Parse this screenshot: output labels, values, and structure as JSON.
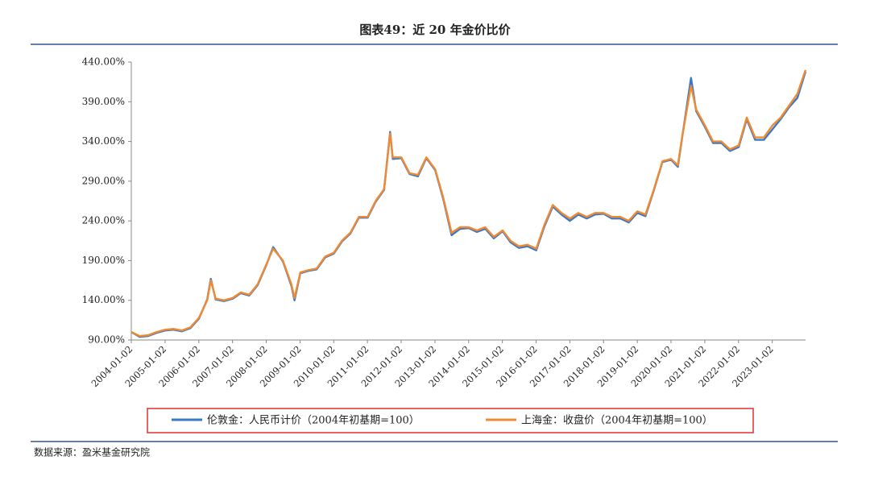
{
  "chart_data": {
    "type": "line",
    "title": "图表49：近 20 年金价比价",
    "source": "数据来源：盈米基金研究院",
    "legend": "bottom",
    "x": [
      "2004-01-02",
      "2004-04-01",
      "2004-07-01",
      "2004-10-01",
      "2005-01-04",
      "2005-04-01",
      "2005-07-01",
      "2005-10-03",
      "2006-01-04",
      "2006-04-03",
      "2006-05-12",
      "2006-07-03",
      "2006-10-02",
      "2007-01-04",
      "2007-04-02",
      "2007-07-02",
      "2007-10-01",
      "2008-01-02",
      "2008-03-17",
      "2008-07-01",
      "2008-10-01",
      "2008-11-03",
      "2009-01-05",
      "2009-04-01",
      "2009-07-01",
      "2009-10-01",
      "2010-01-04",
      "2010-04-01",
      "2010-07-01",
      "2010-10-01",
      "2011-01-04",
      "2011-04-01",
      "2011-07-01",
      "2011-09-05",
      "2011-10-03",
      "2012-01-04",
      "2012-04-02",
      "2012-07-02",
      "2012-10-01",
      "2013-01-04",
      "2013-04-01",
      "2013-07-01",
      "2013-10-01",
      "2014-01-02",
      "2014-04-01",
      "2014-07-01",
      "2014-10-01",
      "2015-01-05",
      "2015-04-01",
      "2015-07-01",
      "2015-10-01",
      "2016-01-04",
      "2016-04-01",
      "2016-07-01",
      "2016-10-03",
      "2017-01-03",
      "2017-04-03",
      "2017-07-03",
      "2017-10-02",
      "2018-01-02",
      "2018-04-02",
      "2018-07-02",
      "2018-10-01",
      "2019-01-02",
      "2019-04-01",
      "2019-07-01",
      "2019-10-01",
      "2020-01-02",
      "2020-03-16",
      "2020-05-01",
      "2020-08-06",
      "2020-10-01",
      "2021-01-04",
      "2021-04-01",
      "2021-07-01",
      "2021-10-01",
      "2022-01-04",
      "2022-04-01",
      "2022-07-01",
      "2022-10-03",
      "2023-01-03",
      "2023-04-03",
      "2023-07-03",
      "2023-10-02",
      "2023-12-29"
    ],
    "series": [
      {
        "name": "伦敦金：人民币计价（2004年初基期=100）",
        "color": "#3a78c8",
        "values": [
          100,
          94,
          95,
          99,
          102,
          103,
          101,
          105,
          117,
          141,
          167,
          141,
          139,
          142,
          149,
          146,
          159,
          184,
          207,
          189,
          158,
          140,
          174,
          177,
          179,
          194,
          199,
          214,
          224,
          244,
          244,
          264,
          279,
          352,
          318,
          319,
          299,
          296,
          319,
          304,
          268,
          222,
          230,
          231,
          226,
          230,
          218,
          227,
          213,
          206,
          208,
          203,
          233,
          258,
          248,
          240,
          248,
          243,
          248,
          249,
          243,
          243,
          238,
          250,
          246,
          279,
          314,
          317,
          308,
          344,
          420,
          378,
          358,
          338,
          338,
          328,
          333,
          368,
          342,
          342,
          355,
          368,
          383,
          395,
          428
        ]
      },
      {
        "name": "上海金：收盘价（2004年初基期=100）",
        "color": "#f08a32",
        "values": [
          100,
          95,
          96,
          100,
          103,
          104,
          102,
          106,
          118,
          140,
          165,
          142,
          140,
          143,
          150,
          147,
          160,
          185,
          205,
          190,
          160,
          143,
          175,
          178,
          180,
          195,
          200,
          215,
          225,
          245,
          245,
          265,
          280,
          350,
          320,
          320,
          300,
          298,
          320,
          305,
          270,
          225,
          232,
          232,
          228,
          232,
          220,
          228,
          215,
          208,
          210,
          205,
          235,
          260,
          250,
          243,
          250,
          245,
          250,
          250,
          245,
          245,
          240,
          252,
          248,
          280,
          315,
          318,
          310,
          345,
          410,
          380,
          360,
          340,
          340,
          330,
          335,
          370,
          345,
          345,
          360,
          370,
          385,
          400,
          430
        ]
      }
    ],
    "xlim": [
      "2004-01-02",
      "2023-12-29"
    ],
    "xticks": [
      "2004-01-02",
      "2005-01-02",
      "2006-01-02",
      "2007-01-02",
      "2008-01-02",
      "2009-01-02",
      "2010-01-02",
      "2011-01-02",
      "2012-01-02",
      "2013-01-02",
      "2014-01-02",
      "2015-01-02",
      "2016-01-02",
      "2017-01-02",
      "2018-01-02",
      "2019-01-02",
      "2020-01-02",
      "2021-01-02",
      "2022-01-02",
      "2023-01-02"
    ],
    "ylim": [
      90,
      440
    ],
    "yticks": [
      {
        "value": 90,
        "label": "90.00%"
      },
      {
        "value": 140,
        "label": "140.00%"
      },
      {
        "value": 190,
        "label": "190.00%"
      },
      {
        "value": 240,
        "label": "240.00%"
      },
      {
        "value": 290,
        "label": "290.00%"
      },
      {
        "value": 340,
        "label": "340.00%"
      },
      {
        "value": 390,
        "label": "390.00%"
      },
      {
        "value": 440,
        "label": "440.00%"
      }
    ]
  }
}
